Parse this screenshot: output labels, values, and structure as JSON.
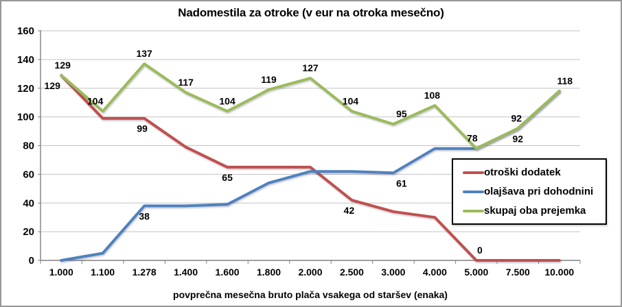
{
  "title": "Nadomestila za otroke (v eur na otroka mesečno)",
  "colors": {
    "grid": "#C3C3C3",
    "axis": "#808080",
    "page_border": "#969696",
    "legend_border": "#000000",
    "red_series": "#C0504D",
    "blue_series": "#4F81BD",
    "green_series": "#9BBB59",
    "red_label": "#C00000",
    "blue_label": "#2E74B5",
    "green_label": "#76923C"
  },
  "chart_data": {
    "type": "line",
    "title": "Nadomestila za otroke (v eur na otroka mesečno)",
    "xlabel": "povprečna mesečna bruto plača vsakega od staršev (enaka)",
    "ylabel": "",
    "ylim": [
      0,
      160
    ],
    "yticks": [
      0,
      20,
      40,
      60,
      80,
      100,
      120,
      140,
      160
    ],
    "grid": true,
    "legend_position": "inside-right",
    "categories": [
      "1.000",
      "1.100",
      "1.278",
      "1.400",
      "1.600",
      "1.800",
      "2.000",
      "2.500",
      "3.000",
      "4.000",
      "5.000",
      "7.500",
      "10.000"
    ],
    "series": [
      {
        "name": "otroški dodatek",
        "color": "#C0504D",
        "label_color": "#C00000",
        "values": [
          129,
          99,
          99,
          79,
          65,
          65,
          65,
          42,
          34,
          30,
          0,
          0,
          0
        ],
        "point_labels": [
          {
            "index": 0,
            "text": "129",
            "placement": "below",
            "dx": -13
          },
          {
            "index": 2,
            "text": "99",
            "placement": "below",
            "dx": -3
          },
          {
            "index": 4,
            "text": "65",
            "placement": "below"
          },
          {
            "index": 7,
            "text": "42",
            "placement": "below",
            "dx": -4
          },
          {
            "index": 10,
            "text": "0",
            "placement": "above",
            "dx": 5
          }
        ]
      },
      {
        "name": "olajšava pri dohodnini",
        "color": "#4F81BD",
        "label_color": "#2E74B5",
        "values": [
          0,
          5,
          38,
          38,
          39,
          54,
          62,
          62,
          61,
          78,
          78,
          92,
          118
        ],
        "point_labels": [
          {
            "index": 2,
            "text": "38",
            "placement": "below"
          },
          {
            "index": 8,
            "text": "61",
            "placement": "below",
            "dx": 12
          },
          {
            "index": 11,
            "text": "92",
            "placement": "below"
          }
        ]
      },
      {
        "name": "skupaj oba prejemka",
        "color": "#9BBB59",
        "label_color": "#76923C",
        "values": [
          129,
          104,
          137,
          117,
          104,
          119,
          127,
          104,
          95,
          108,
          78,
          92,
          118
        ],
        "point_labels": [
          {
            "index": 0,
            "text": "129",
            "placement": "above",
            "dx": 2
          },
          {
            "index": 1,
            "text": "104",
            "placement": "above",
            "dx": -11
          },
          {
            "index": 2,
            "text": "137",
            "placement": "above"
          },
          {
            "index": 3,
            "text": "117",
            "placement": "above"
          },
          {
            "index": 4,
            "text": "104",
            "placement": "above"
          },
          {
            "index": 5,
            "text": "119",
            "placement": "above"
          },
          {
            "index": 6,
            "text": "127",
            "placement": "above"
          },
          {
            "index": 7,
            "text": "104",
            "placement": "above",
            "dx": -2
          },
          {
            "index": 8,
            "text": "95",
            "placement": "above",
            "dx": 12
          },
          {
            "index": 9,
            "text": "108",
            "placement": "above",
            "dx": -4
          },
          {
            "index": 10,
            "text": "78",
            "placement": "above",
            "dx": -6
          },
          {
            "index": 11,
            "text": "92",
            "placement": "above",
            "dx": -2
          },
          {
            "index": 12,
            "text": "118",
            "placement": "above",
            "dx": 8
          }
        ]
      }
    ]
  }
}
